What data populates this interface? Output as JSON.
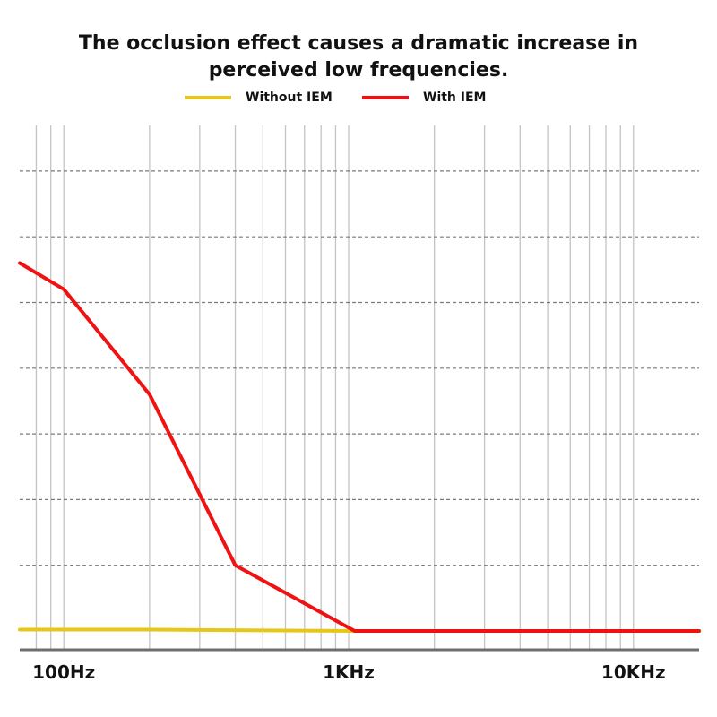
{
  "chart_data": {
    "type": "line",
    "title": "The occlusion effect causes a dramatic increase in perceived low frequencies.",
    "xlabel": "",
    "ylabel": "",
    "x_scale": "log",
    "xlim": [
      70,
      17000
    ],
    "ylim": [
      0,
      7.3
    ],
    "x_ticks": [
      {
        "value": 100,
        "label": "100Hz"
      },
      {
        "value": 1000,
        "label": "1KHz"
      },
      {
        "value": 10000,
        "label": "10KHz"
      }
    ],
    "x_gridlines": [
      80,
      90,
      100,
      200,
      300,
      400,
      500,
      600,
      700,
      800,
      900,
      1000,
      2000,
      3000,
      4000,
      5000,
      6000,
      7000,
      8000,
      9000,
      10000
    ],
    "y_gridlines": [
      1,
      2,
      3,
      4,
      5,
      6,
      7
    ],
    "grid": true,
    "legend_position": "top-center",
    "series": [
      {
        "name": "Without IEM",
        "color": "#E6C619",
        "x": [
          70,
          200,
          1050,
          17000
        ],
        "y": [
          0.02,
          0.02,
          0.0,
          0.0
        ]
      },
      {
        "name": "With IEM",
        "color": "#F01212",
        "x": [
          70,
          100,
          200,
          400,
          1050,
          17000
        ],
        "y": [
          5.6,
          5.2,
          3.6,
          1.0,
          0.0,
          0.0
        ]
      }
    ]
  }
}
